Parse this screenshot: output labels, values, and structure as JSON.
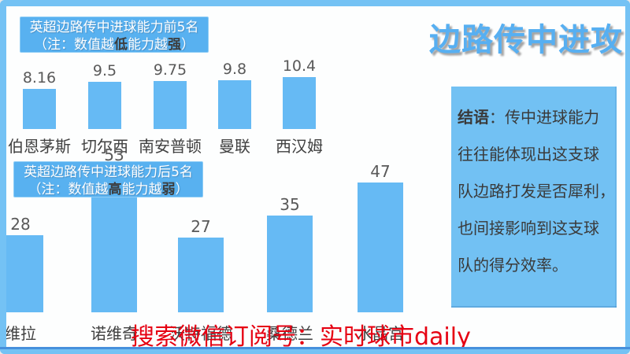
{
  "header": {
    "title": "边路传中进攻"
  },
  "top_box": {
    "title": "英超边路传中进球能力前5名",
    "note": {
      "prefix": "（注：数值越",
      "em1": "低",
      "mid": "能力越",
      "em2": "强",
      "suffix": "）"
    }
  },
  "bottom_box": {
    "title": "英超边路传中进球能力后5名",
    "note": {
      "prefix": "（注：数值越",
      "em1": "高",
      "mid": "能力越",
      "em2": "弱",
      "suffix": "）"
    }
  },
  "conclusion": {
    "label": "结语",
    "lines": [
      "：传中进球能力",
      "往往能体现出这支球",
      "队边路打发是否犀利，",
      "也间接影响到这支球",
      "队的得分效率。"
    ]
  },
  "footer": {
    "text": "搜索微信订阅号：实时球市daily"
  },
  "colors": {
    "frame_blue": "#74c2f4",
    "bottom_line_blue": "#4690dc",
    "caption_box_blue": "#58b1f0",
    "bar_blue": "#66baf4",
    "conclusion_box_blue": "#72c1f3",
    "header_title_blue": "#57aff1",
    "footer_red": "#e60012",
    "value_gray": "#595959",
    "label_gray": "#404040"
  },
  "chart_data": [
    {
      "type": "bar",
      "title": "英超边路传中进球能力前5名（注：数值越低能力越强）",
      "categories": [
        "伯恩茅斯",
        "切尔西",
        "南安普顿",
        "曼联",
        "西汉姆"
      ],
      "values": [
        8.16,
        9.5,
        9.75,
        9.8,
        10.4
      ],
      "xlabel": "",
      "ylabel": "",
      "grid": false,
      "legend": false,
      "value_labels_shown": true
    },
    {
      "type": "bar",
      "title": "英超边路传中进球能力后5名（注：数值越高能力越弱）",
      "categories": [
        "维拉",
        "诺维奇",
        "沃特福德",
        "桑德兰",
        "水晶宫"
      ],
      "values": [
        28,
        53,
        27,
        35,
        47
      ],
      "xlabel": "",
      "ylabel": "",
      "grid": false,
      "legend": false,
      "value_labels_shown": true
    }
  ]
}
